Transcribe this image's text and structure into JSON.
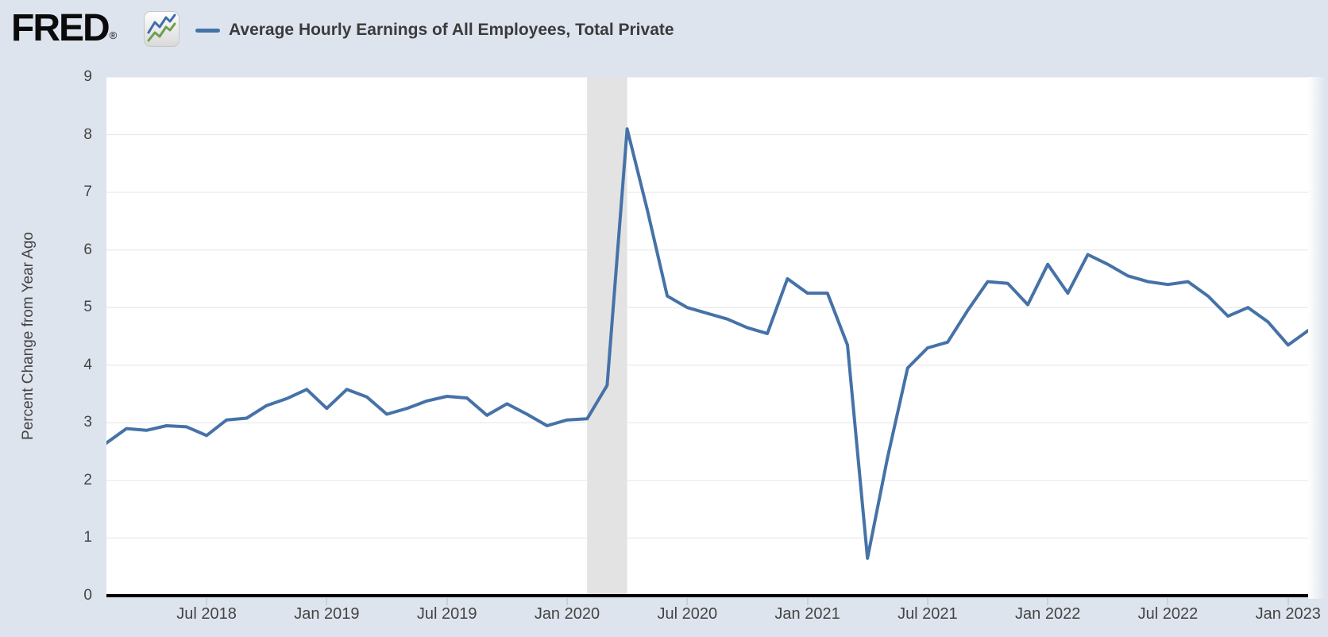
{
  "header": {
    "logo_text": "FRED",
    "logo_reg": "®",
    "series_label": "Average Hourly Earnings of All Employees, Total Private"
  },
  "y_axis": {
    "title": "Percent Change from Year Ago",
    "ticks": [
      0,
      1,
      2,
      3,
      4,
      5,
      6,
      7,
      8,
      9
    ],
    "min": 0,
    "max": 9
  },
  "x_axis": {
    "ticks": [
      {
        "label": "Jul 2018",
        "month_index": 5
      },
      {
        "label": "Jan 2019",
        "month_index": 11
      },
      {
        "label": "Jul 2019",
        "month_index": 17
      },
      {
        "label": "Jan 2020",
        "month_index": 23
      },
      {
        "label": "Jul 2020",
        "month_index": 29
      },
      {
        "label": "Jan 2021",
        "month_index": 35
      },
      {
        "label": "Jul 2021",
        "month_index": 41
      },
      {
        "label": "Jan 2022",
        "month_index": 47
      },
      {
        "label": "Jul 2022",
        "month_index": 53
      },
      {
        "label": "Jan 2023",
        "month_index": 59
      }
    ]
  },
  "recession_band": {
    "start_month_index": 24,
    "end_month_index": 26,
    "label": "Feb 2020 - Apr 2020 recession"
  },
  "colors": {
    "background": "#dee4ee",
    "plot_background": "#ffffff",
    "line": "#4572a7",
    "gridline": "#e6e6e6",
    "recession": "#e3e3e3",
    "axis_line": "#000000",
    "tick_mark": "#c6d0e0",
    "tick_text": "#444444",
    "title_text": "#3b3b3b",
    "logo_blue": "#3e6daa",
    "logo_green": "#6f9e4f"
  },
  "chart_data": {
    "type": "line",
    "title": "Average Hourly Earnings of All Employees, Total Private",
    "xlabel": "",
    "ylabel": "Percent Change from Year Ago",
    "ylim": [
      0,
      9
    ],
    "grid": true,
    "legend_position": "top-left",
    "recession_shading": "Feb 2020 - Apr 2020",
    "x": [
      "Feb 2018",
      "Mar 2018",
      "Apr 2018",
      "May 2018",
      "Jun 2018",
      "Jul 2018",
      "Aug 2018",
      "Sep 2018",
      "Oct 2018",
      "Nov 2018",
      "Dec 2018",
      "Jan 2019",
      "Feb 2019",
      "Mar 2019",
      "Apr 2019",
      "May 2019",
      "Jun 2019",
      "Jul 2019",
      "Aug 2019",
      "Sep 2019",
      "Oct 2019",
      "Nov 2019",
      "Dec 2019",
      "Jan 2020",
      "Feb 2020",
      "Mar 2020",
      "Apr 2020",
      "May 2020",
      "Jun 2020",
      "Jul 2020",
      "Aug 2020",
      "Sep 2020",
      "Oct 2020",
      "Nov 2020",
      "Dec 2020",
      "Jan 2021",
      "Feb 2021",
      "Mar 2021",
      "Apr 2021",
      "May 2021",
      "Jun 2021",
      "Jul 2021",
      "Aug 2021",
      "Sep 2021",
      "Oct 2021",
      "Nov 2021",
      "Dec 2021",
      "Jan 2022",
      "Feb 2022",
      "Mar 2022",
      "Apr 2022",
      "May 2022",
      "Jun 2022",
      "Jul 2022",
      "Aug 2022",
      "Sep 2022",
      "Oct 2022",
      "Nov 2022",
      "Dec 2022",
      "Jan 2023",
      "Feb 2023"
    ],
    "values": [
      2.65,
      2.9,
      2.87,
      2.95,
      2.93,
      2.78,
      3.05,
      3.08,
      3.3,
      3.42,
      3.58,
      3.25,
      3.58,
      3.45,
      3.15,
      3.25,
      3.38,
      3.46,
      3.43,
      3.13,
      3.33,
      3.15,
      2.95,
      3.05,
      3.07,
      3.65,
      8.1,
      6.7,
      5.2,
      5.0,
      4.9,
      4.8,
      4.65,
      4.55,
      5.5,
      5.25,
      5.25,
      4.35,
      0.65,
      2.4,
      3.95,
      4.3,
      4.4,
      4.95,
      5.45,
      5.42,
      5.05,
      5.75,
      5.25,
      5.92,
      5.75,
      5.55,
      5.45,
      5.4,
      5.45,
      5.2,
      4.85,
      5.0,
      4.75,
      4.35,
      4.6
    ]
  }
}
